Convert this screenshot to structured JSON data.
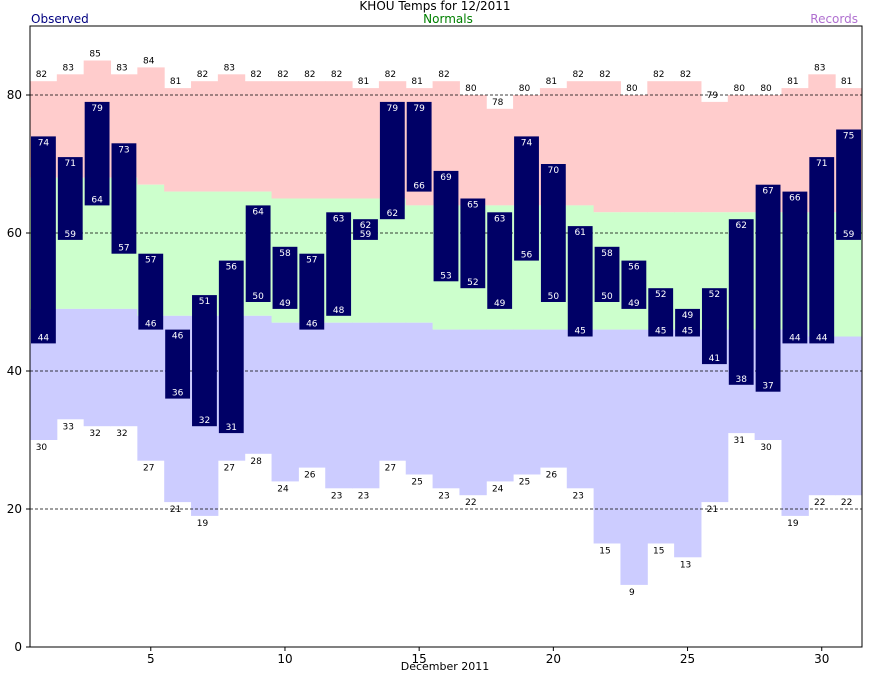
{
  "header": {
    "title": "KHOU Temps for 12/2011",
    "observed_label": "Observed",
    "normals_label": "Normals",
    "records_label": "Records"
  },
  "chart_data": {
    "type": "bar",
    "title": "KHOU Temps for 12/2011",
    "xlabel": "December 2011",
    "ylabel": "",
    "ylim": [
      0,
      90
    ],
    "xlim": [
      0.5,
      31.5
    ],
    "yticks": [
      0,
      20,
      40,
      60,
      80
    ],
    "xticks": [
      5,
      10,
      15,
      20,
      25,
      30
    ],
    "grid_lines_y": [
      20,
      40,
      60,
      80
    ],
    "days": [
      1,
      2,
      3,
      4,
      5,
      6,
      7,
      8,
      9,
      10,
      11,
      12,
      13,
      14,
      15,
      16,
      17,
      18,
      19,
      20,
      21,
      22,
      23,
      24,
      25,
      26,
      27,
      28,
      29,
      30,
      31
    ],
    "observed_high": [
      74,
      71,
      79,
      73,
      57,
      46,
      51,
      56,
      64,
      58,
      57,
      63,
      62,
      79,
      79,
      69,
      65,
      63,
      74,
      70,
      61,
      58,
      56,
      52,
      49,
      52,
      62,
      67,
      66,
      71,
      75
    ],
    "observed_low": [
      44,
      59,
      64,
      57,
      46,
      36,
      32,
      31,
      50,
      49,
      46,
      48,
      59,
      62,
      66,
      53,
      52,
      49,
      56,
      50,
      45,
      50,
      49,
      45,
      45,
      41,
      38,
      37,
      44,
      44,
      59
    ],
    "normal_high": [
      68,
      68,
      68,
      68,
      67,
      66,
      66,
      66,
      66,
      65,
      65,
      65,
      65,
      65,
      64,
      64,
      64,
      64,
      64,
      64,
      64,
      63,
      63,
      63,
      63,
      63,
      63,
      63,
      63,
      63,
      63
    ],
    "normal_low": [
      49,
      49,
      49,
      49,
      48,
      48,
      48,
      48,
      48,
      47,
      47,
      47,
      47,
      47,
      47,
      46,
      46,
      46,
      46,
      46,
      46,
      46,
      46,
      46,
      46,
      46,
      46,
      46,
      46,
      45,
      45
    ],
    "record_high": [
      82,
      83,
      85,
      83,
      84,
      81,
      82,
      83,
      82,
      82,
      82,
      82,
      81,
      82,
      81,
      82,
      80,
      78,
      80,
      81,
      82,
      82,
      80,
      82,
      82,
      79,
      80,
      80,
      81,
      83,
      81
    ],
    "record_low": [
      30,
      33,
      32,
      32,
      27,
      21,
      19,
      27,
      28,
      24,
      26,
      23,
      23,
      27,
      25,
      23,
      22,
      24,
      25,
      26,
      23,
      15,
      9,
      15,
      13,
      21,
      31,
      30,
      19,
      22,
      22
    ],
    "colors": {
      "observed": "#000066",
      "normal_band": "#ccffcc",
      "record_high_band": "#ffcccc",
      "record_low_band": "#ccccff",
      "observed_text": "#ffffff",
      "record_text": "#000000",
      "grid": "#000000"
    }
  }
}
